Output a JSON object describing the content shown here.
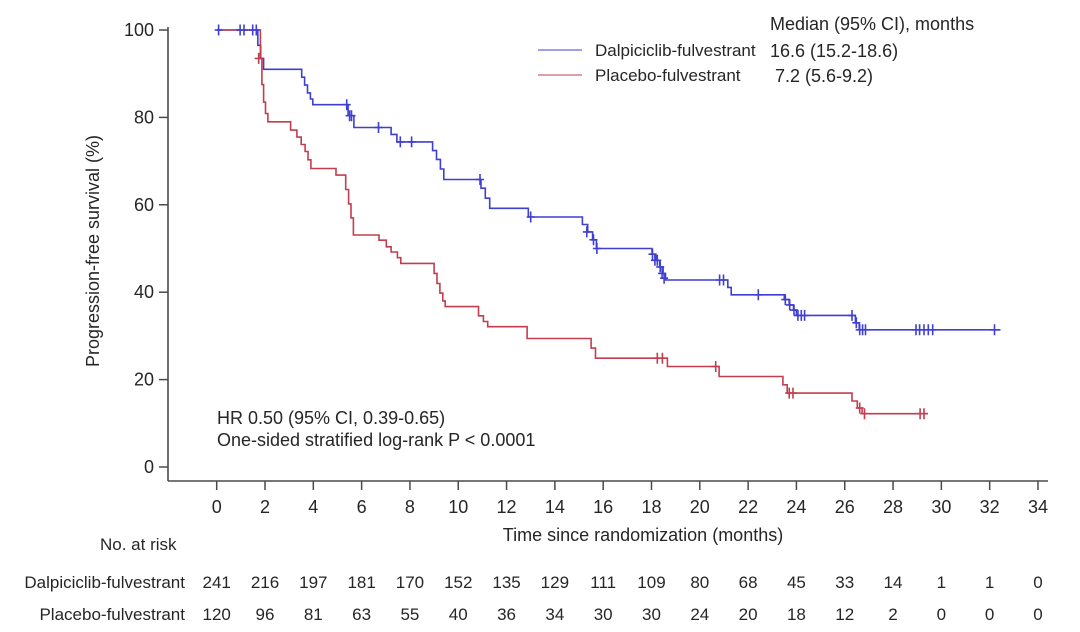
{
  "colors": {
    "treatment": "#3f3fd0",
    "control": "#c23e4f",
    "axis": "#4a4a4a",
    "text": "#262626"
  },
  "legend": {
    "header": "Median (95% CI), months",
    "items": [
      {
        "label": "Dalpiciclib-fulvestrant",
        "median": "16.6 (15.2-18.6)"
      },
      {
        "label": "Placebo-fulvestrant",
        "median": "7.2 (5.6-9.2)"
      }
    ]
  },
  "annotation": {
    "line1": "HR 0.50 (95% CI, 0.39-0.65)",
    "line2": "One-sided stratified log-rank P < 0.0001"
  },
  "chart_data": {
    "type": "line",
    "subtype": "kaplan-meier-step",
    "title": "",
    "xlabel": "Time since randomization (months)",
    "ylabel": "Progression-free survival (%)",
    "xlim": [
      0,
      34
    ],
    "ylim": [
      0,
      100
    ],
    "x_ticks": [
      0,
      2,
      4,
      6,
      8,
      10,
      12,
      14,
      16,
      18,
      20,
      22,
      24,
      26,
      28,
      30,
      32,
      34
    ],
    "y_ticks": [
      0,
      20,
      40,
      60,
      80,
      100
    ],
    "grid": false,
    "legend_position": "top-right",
    "series": [
      {
        "name": "Dalpiciclib-fulvestrant",
        "color": "#3f3fd0",
        "median_months": "16.6",
        "median_ci": "15.2-18.6",
        "steps": [
          [
            0,
            100
          ],
          [
            1.68,
            100
          ],
          [
            1.7,
            96.5
          ],
          [
            1.78,
            96.5
          ],
          [
            1.82,
            93.5
          ],
          [
            1.9,
            93.5
          ],
          [
            1.94,
            91
          ],
          [
            3.45,
            91
          ],
          [
            3.52,
            89.2
          ],
          [
            3.6,
            89.2
          ],
          [
            3.64,
            87.4
          ],
          [
            3.72,
            87.4
          ],
          [
            3.76,
            85.6
          ],
          [
            3.84,
            85.6
          ],
          [
            3.88,
            84.2
          ],
          [
            3.94,
            84.2
          ],
          [
            3.98,
            82.9
          ],
          [
            5.35,
            82.9
          ],
          [
            5.44,
            80.4
          ],
          [
            5.62,
            80.4
          ],
          [
            5.68,
            77.7
          ],
          [
            7.15,
            77.7
          ],
          [
            7.22,
            76.1
          ],
          [
            7.4,
            76.1
          ],
          [
            7.46,
            74.4
          ],
          [
            8.86,
            74.4
          ],
          [
            8.94,
            72.4
          ],
          [
            9.04,
            72.4
          ],
          [
            9.1,
            70.4
          ],
          [
            9.2,
            70.4
          ],
          [
            9.26,
            68.2
          ],
          [
            9.34,
            68.2
          ],
          [
            9.4,
            65.8
          ],
          [
            10.86,
            65.8
          ],
          [
            10.94,
            63.8
          ],
          [
            11.06,
            63.8
          ],
          [
            11.12,
            61.5
          ],
          [
            11.24,
            61.5
          ],
          [
            11.3,
            59.2
          ],
          [
            12.84,
            59.2
          ],
          [
            12.9,
            57.2
          ],
          [
            15.06,
            57.2
          ],
          [
            15.14,
            55.5
          ],
          [
            15.3,
            55.5
          ],
          [
            15.36,
            53.8
          ],
          [
            15.5,
            53.8
          ],
          [
            15.56,
            52
          ],
          [
            15.66,
            52
          ],
          [
            15.72,
            50
          ],
          [
            17.94,
            50
          ],
          [
            18.02,
            48.7
          ],
          [
            18.12,
            48.7
          ],
          [
            18.18,
            47.3
          ],
          [
            18.28,
            47.3
          ],
          [
            18.34,
            45.8
          ],
          [
            18.42,
            45.8
          ],
          [
            18.48,
            44.3
          ],
          [
            18.54,
            44.3
          ],
          [
            18.58,
            42.8
          ],
          [
            21.08,
            42.8
          ],
          [
            21.16,
            41.1
          ],
          [
            21.24,
            41.1
          ],
          [
            21.3,
            39.4
          ],
          [
            23.42,
            39.4
          ],
          [
            23.5,
            38.3
          ],
          [
            23.64,
            38.3
          ],
          [
            23.7,
            37.1
          ],
          [
            23.82,
            37.1
          ],
          [
            23.88,
            35.9
          ],
          [
            23.96,
            35.9
          ],
          [
            24.0,
            34.7
          ],
          [
            26.36,
            34.7
          ],
          [
            26.44,
            33
          ],
          [
            26.54,
            33
          ],
          [
            26.6,
            31.4
          ],
          [
            32.45,
            31.4
          ]
        ],
        "censors": [
          [
            0.08,
            100
          ],
          [
            0.97,
            100
          ],
          [
            1.13,
            100
          ],
          [
            1.49,
            100
          ],
          [
            1.64,
            100
          ],
          [
            5.38,
            82.9
          ],
          [
            5.5,
            80.4
          ],
          [
            5.58,
            80.4
          ],
          [
            6.7,
            77.7
          ],
          [
            7.6,
            74.4
          ],
          [
            8.07,
            74.4
          ],
          [
            10.9,
            65.8
          ],
          [
            13.0,
            57.2
          ],
          [
            15.32,
            53.8
          ],
          [
            15.6,
            52
          ],
          [
            15.74,
            50
          ],
          [
            18.04,
            48.7
          ],
          [
            18.14,
            47.3
          ],
          [
            18.24,
            47.3
          ],
          [
            18.36,
            45.8
          ],
          [
            18.44,
            44.3
          ],
          [
            18.52,
            43.2
          ],
          [
            20.82,
            42.8
          ],
          [
            20.98,
            42.8
          ],
          [
            22.42,
            39.4
          ],
          [
            23.54,
            38.3
          ],
          [
            23.72,
            37.1
          ],
          [
            23.9,
            35.9
          ],
          [
            24.06,
            34.7
          ],
          [
            24.2,
            34.7
          ],
          [
            24.34,
            34.7
          ],
          [
            26.3,
            34.7
          ],
          [
            26.48,
            33
          ],
          [
            26.62,
            31.4
          ],
          [
            26.74,
            31.4
          ],
          [
            26.86,
            31.4
          ],
          [
            28.95,
            31.4
          ],
          [
            29.1,
            31.4
          ],
          [
            29.28,
            31.4
          ],
          [
            29.46,
            31.4
          ],
          [
            29.64,
            31.4
          ],
          [
            32.2,
            31.4
          ]
        ]
      },
      {
        "name": "Placebo-fulvestrant",
        "color": "#c23e4f",
        "median_months": "7.2",
        "median_ci": "5.6-9.2",
        "steps": [
          [
            0,
            100
          ],
          [
            1.78,
            100
          ],
          [
            1.81,
            93.5
          ],
          [
            1.84,
            93.5
          ],
          [
            1.87,
            87.5
          ],
          [
            1.91,
            87.5
          ],
          [
            1.94,
            83.5
          ],
          [
            1.98,
            83.5
          ],
          [
            2.02,
            80.9
          ],
          [
            2.08,
            80.9
          ],
          [
            2.12,
            79
          ],
          [
            3.0,
            79
          ],
          [
            3.06,
            77.1
          ],
          [
            3.26,
            77.1
          ],
          [
            3.32,
            75.5
          ],
          [
            3.46,
            75.5
          ],
          [
            3.5,
            73.8
          ],
          [
            3.6,
            73.8
          ],
          [
            3.66,
            72.2
          ],
          [
            3.74,
            72.2
          ],
          [
            3.78,
            70.3
          ],
          [
            3.86,
            70.3
          ],
          [
            3.9,
            68.3
          ],
          [
            4.86,
            68.3
          ],
          [
            4.94,
            66.8
          ],
          [
            5.28,
            66.8
          ],
          [
            5.34,
            63.5
          ],
          [
            5.42,
            63.5
          ],
          [
            5.46,
            60.2
          ],
          [
            5.52,
            60.2
          ],
          [
            5.56,
            57
          ],
          [
            5.62,
            57
          ],
          [
            5.66,
            53.1
          ],
          [
            6.66,
            53.1
          ],
          [
            6.72,
            51.9
          ],
          [
            6.96,
            51.9
          ],
          [
            7.02,
            50.4
          ],
          [
            7.16,
            50.4
          ],
          [
            7.22,
            49.2
          ],
          [
            7.42,
            49.2
          ],
          [
            7.48,
            47.9
          ],
          [
            7.58,
            47.9
          ],
          [
            7.62,
            46.6
          ],
          [
            8.92,
            46.6
          ],
          [
            9.0,
            44.3
          ],
          [
            9.08,
            44.3
          ],
          [
            9.12,
            42
          ],
          [
            9.2,
            42
          ],
          [
            9.24,
            39.8
          ],
          [
            9.32,
            39.8
          ],
          [
            9.36,
            38
          ],
          [
            9.42,
            38
          ],
          [
            9.46,
            36.7
          ],
          [
            10.76,
            36.7
          ],
          [
            10.84,
            34.6
          ],
          [
            10.98,
            34.6
          ],
          [
            11.04,
            33.3
          ],
          [
            11.16,
            33.3
          ],
          [
            11.22,
            32.1
          ],
          [
            12.78,
            32.1
          ],
          [
            12.85,
            29.4
          ],
          [
            15.42,
            29.4
          ],
          [
            15.5,
            27.2
          ],
          [
            15.6,
            27.2
          ],
          [
            15.68,
            24.9
          ],
          [
            18.58,
            24.9
          ],
          [
            18.66,
            23
          ],
          [
            20.6,
            23
          ],
          [
            20.8,
            20.7
          ],
          [
            23.36,
            20.7
          ],
          [
            23.44,
            18.8
          ],
          [
            23.56,
            18.8
          ],
          [
            23.62,
            16.9
          ],
          [
            26.22,
            16.9
          ],
          [
            26.3,
            15.1
          ],
          [
            26.44,
            15.1
          ],
          [
            26.52,
            13.5
          ],
          [
            26.66,
            13.5
          ],
          [
            26.72,
            12.2
          ],
          [
            29.4,
            12.2
          ]
        ],
        "censors": [
          [
            1.74,
            93.5
          ],
          [
            18.24,
            24.9
          ],
          [
            18.45,
            24.9
          ],
          [
            20.66,
            23
          ],
          [
            23.7,
            16.9
          ],
          [
            23.86,
            16.9
          ],
          [
            26.62,
            13.5
          ],
          [
            26.82,
            12.2
          ],
          [
            29.12,
            12.2
          ],
          [
            29.28,
            12.2
          ]
        ]
      }
    ]
  },
  "risk_table": {
    "title": "No. at risk",
    "time_points": [
      0,
      2,
      4,
      6,
      8,
      10,
      12,
      14,
      16,
      18,
      20,
      22,
      24,
      26,
      28,
      30,
      32,
      34
    ],
    "rows": [
      {
        "label": "Dalpiciclib-fulvestrant",
        "counts": [
          241,
          216,
          197,
          181,
          170,
          152,
          135,
          129,
          111,
          109,
          80,
          68,
          45,
          33,
          14,
          1,
          1,
          0
        ]
      },
      {
        "label": "Placebo-fulvestrant",
        "counts": [
          120,
          96,
          81,
          63,
          55,
          40,
          36,
          34,
          30,
          30,
          24,
          20,
          18,
          12,
          2,
          0,
          0,
          0
        ]
      }
    ]
  }
}
